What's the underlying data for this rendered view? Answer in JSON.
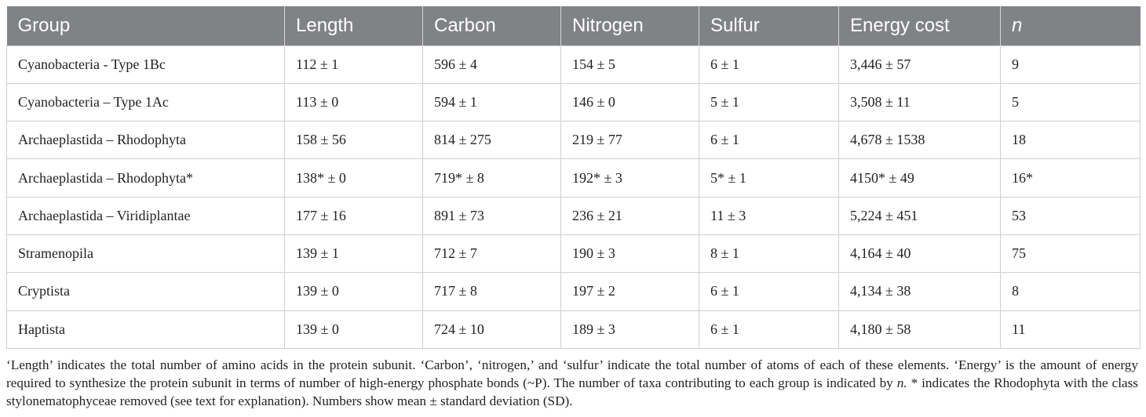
{
  "table": {
    "headers": [
      "Group",
      "Length",
      "Carbon",
      "Nitrogen",
      "Sulfur",
      "Energy cost",
      "n"
    ],
    "rows": [
      [
        "Cyanobacteria - Type 1Bc",
        "112 ± 1",
        "596 ± 4",
        "154 ± 5",
        "6 ± 1",
        "3,446 ± 57",
        "9"
      ],
      [
        "Cyanobacteria – Type 1Ac",
        "113 ± 0",
        "594 ± 1",
        "146 ± 0",
        "5 ± 1",
        "3,508 ± 11",
        "5"
      ],
      [
        "Archaeplastida – Rhodophyta",
        "158 ± 56",
        "814 ± 275",
        "219 ± 77",
        "6 ± 1",
        "4,678 ± 1538",
        "18"
      ],
      [
        "Archaeplastida – Rhodophyta*",
        "138* ± 0",
        "719* ± 8",
        "192* ± 3",
        "5* ± 1",
        "4150* ± 49",
        "16*"
      ],
      [
        "Archaeplastida – Viridiplantae",
        "177 ± 16",
        "891 ± 73",
        "236 ± 21",
        "11 ± 3",
        "5,224 ± 451",
        "53"
      ],
      [
        "Stramenopila",
        "139 ± 1",
        "712 ± 7",
        "190 ± 3",
        "8 ± 1",
        "4,164 ± 40",
        "75"
      ],
      [
        "Cryptista",
        "139 ± 0",
        "717 ± 8",
        "197 ± 2",
        "6 ± 1",
        "4,134 ± 38",
        "8"
      ],
      [
        "Haptista",
        "139 ± 0",
        "724 ± 10",
        "189 ± 3",
        "6 ± 1",
        "4,180 ± 58",
        "11"
      ]
    ]
  },
  "footnote": {
    "part1": "‘Length’ indicates the total number of amino acids in the protein subunit. ‘Carbon’, ‘nitrogen,’ and ‘sulfur’ indicate the total number of atoms of each of these elements. ‘Energy’ is the amount of energy required to synthesize the protein subunit in terms of number of high-energy phosphate bonds (~P). The number of taxa contributing to each group is indicated by ",
    "italic": "n.",
    "part2": " * indicates the Rhodophyta with the class stylonematophyceae removed (see text for explanation). Numbers show mean ± standard deviation (SD)."
  }
}
